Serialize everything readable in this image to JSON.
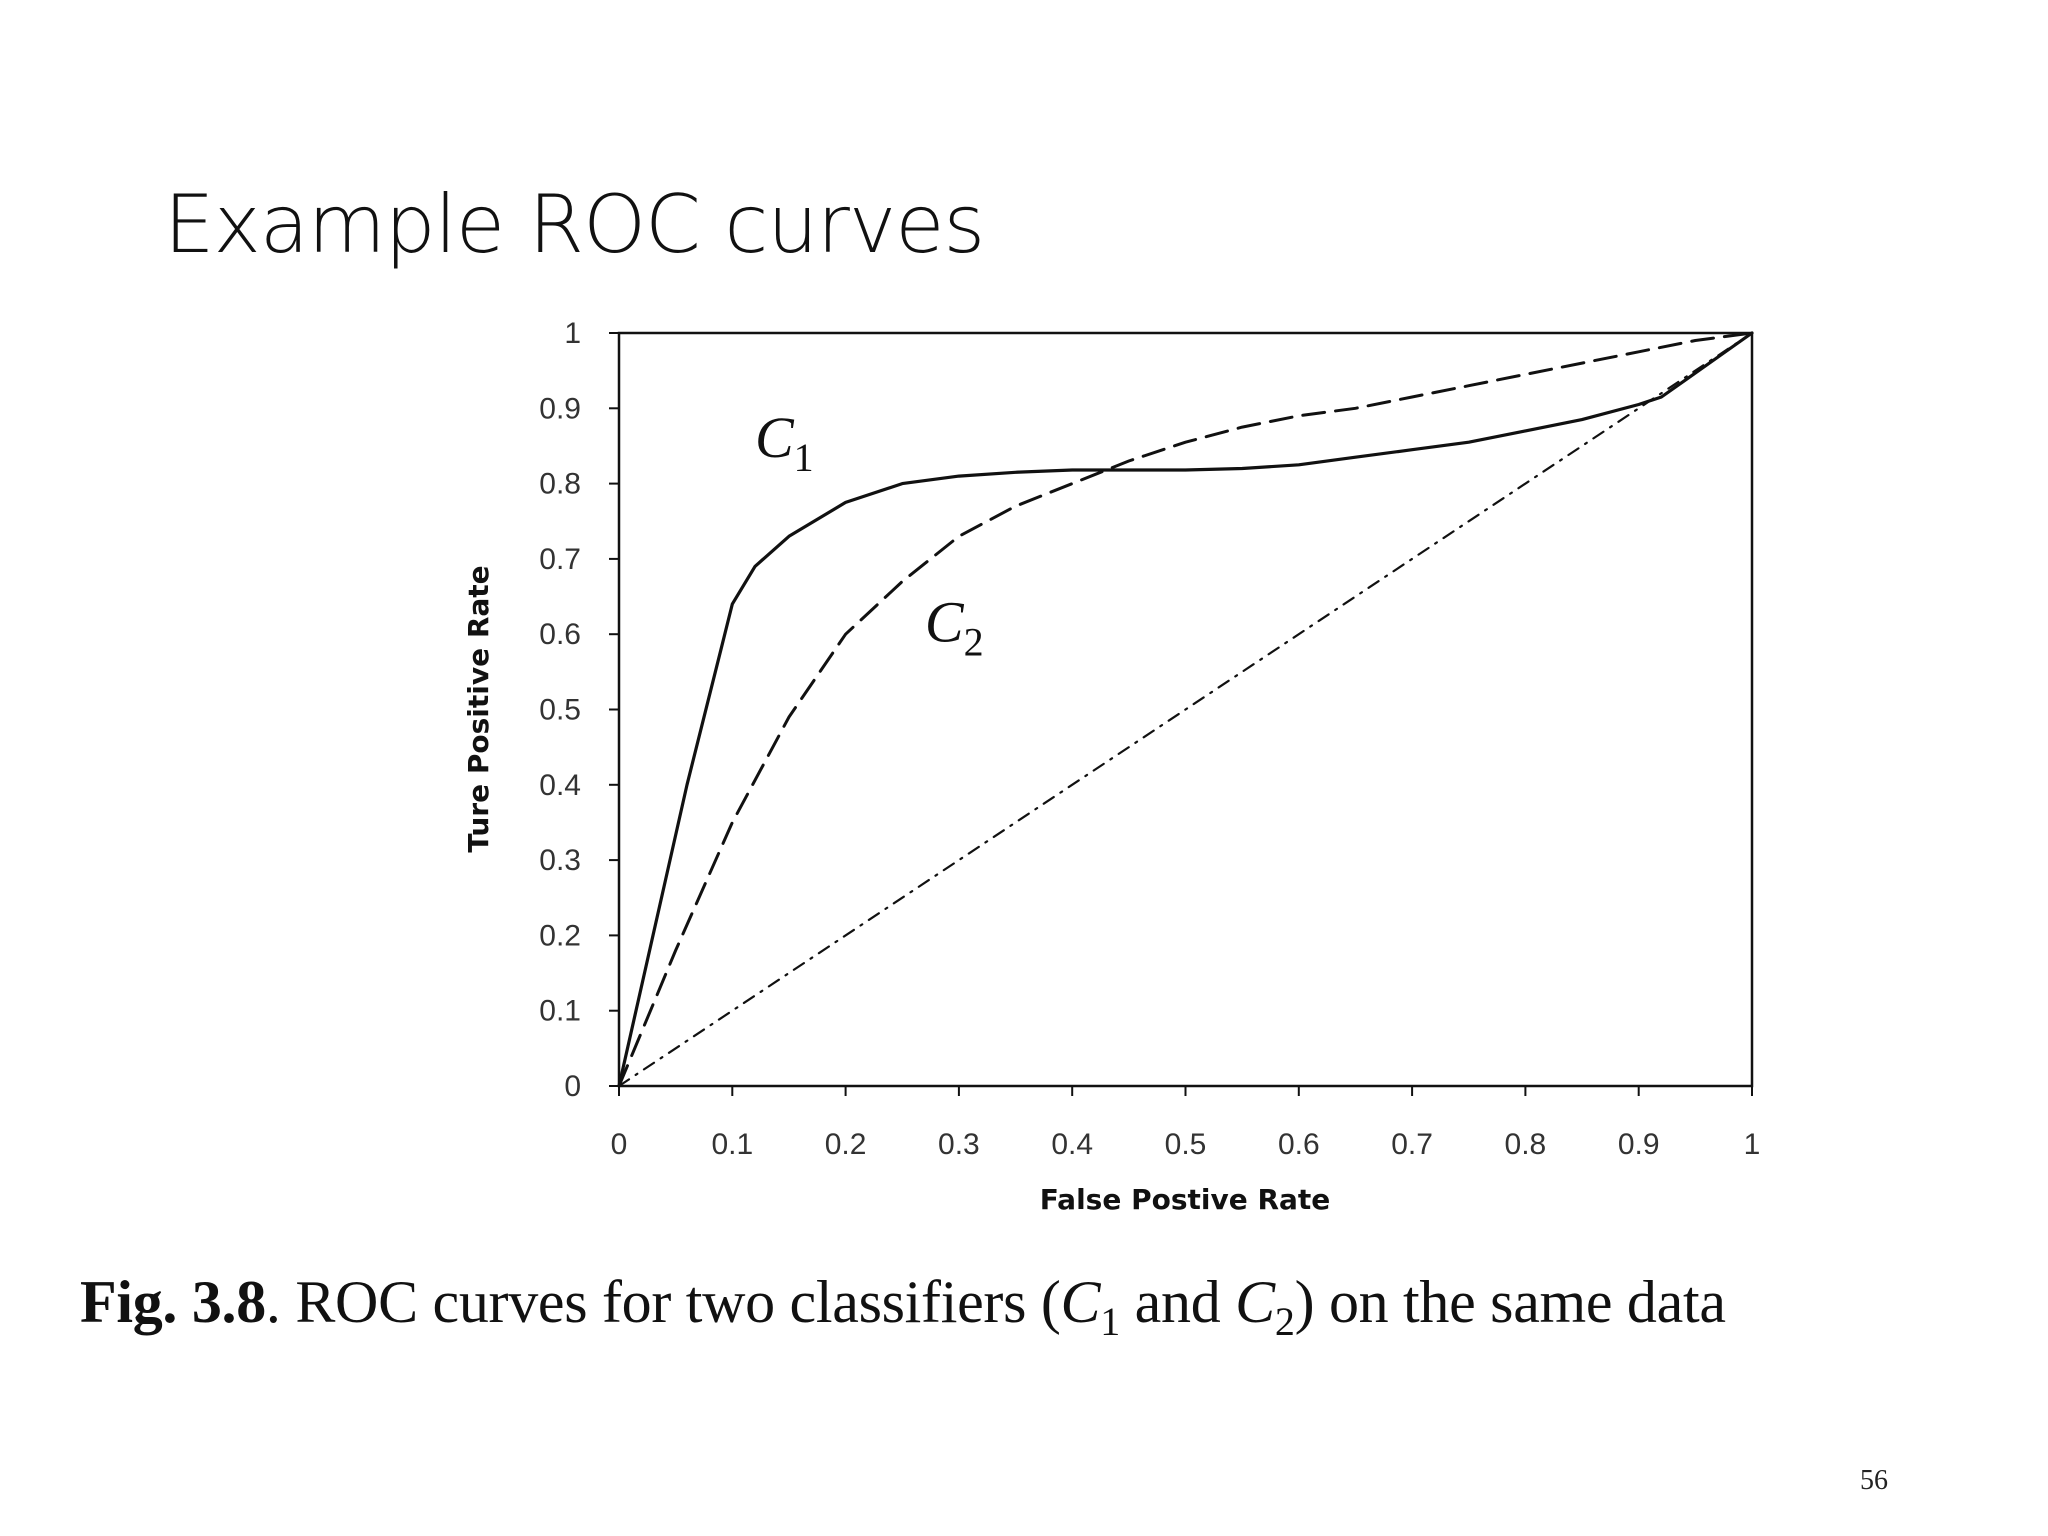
{
  "slide": {
    "title": "Example ROC curves",
    "page_number": "56"
  },
  "caption": {
    "fig_label": "Fig. 3.8",
    "text_before": ". ROC curves for two classifiers (",
    "c1_letter": "C",
    "c1_sub": "1",
    "middle": " and ",
    "c2_letter": "C",
    "c2_sub": "2",
    "text_after": ") on the same data"
  },
  "chart_data": {
    "type": "line",
    "xlabel": "False Postive Rate",
    "ylabel": "Ture Positive Rate",
    "xlim": [
      0,
      1
    ],
    "ylim": [
      0,
      1
    ],
    "x_ticks": [
      "0",
      "0.1",
      "0.2",
      "0.3",
      "0.4",
      "0.5",
      "0.6",
      "0.7",
      "0.8",
      "0.9",
      "1"
    ],
    "y_ticks": [
      "0",
      "0.1",
      "0.2",
      "0.3",
      "0.4",
      "0.5",
      "0.6",
      "0.7",
      "0.8",
      "0.9",
      "1"
    ],
    "grid": false,
    "series": [
      {
        "name": "C1",
        "style": "solid",
        "x": [
          0,
          0.03,
          0.06,
          0.09,
          0.1,
          0.12,
          0.15,
          0.2,
          0.25,
          0.3,
          0.35,
          0.4,
          0.45,
          0.5,
          0.55,
          0.6,
          0.65,
          0.7,
          0.75,
          0.8,
          0.85,
          0.9,
          0.92,
          1.0
        ],
        "y": [
          0,
          0.2,
          0.4,
          0.58,
          0.64,
          0.69,
          0.73,
          0.775,
          0.8,
          0.81,
          0.815,
          0.818,
          0.818,
          0.818,
          0.82,
          0.825,
          0.835,
          0.845,
          0.855,
          0.87,
          0.885,
          0.905,
          0.915,
          1.0
        ]
      },
      {
        "name": "C2",
        "style": "dashed",
        "x": [
          0,
          0.05,
          0.1,
          0.15,
          0.2,
          0.25,
          0.3,
          0.35,
          0.4,
          0.45,
          0.5,
          0.55,
          0.6,
          0.65,
          0.7,
          0.75,
          0.8,
          0.85,
          0.9,
          0.95,
          1.0
        ],
        "y": [
          0,
          0.18,
          0.35,
          0.49,
          0.6,
          0.67,
          0.73,
          0.77,
          0.8,
          0.83,
          0.855,
          0.875,
          0.89,
          0.9,
          0.915,
          0.93,
          0.945,
          0.96,
          0.975,
          0.99,
          1.0
        ]
      },
      {
        "name": "",
        "style": "dash-dot",
        "x": [
          0,
          1
        ],
        "y": [
          0,
          1
        ]
      }
    ],
    "annotations": [
      {
        "letter": "C",
        "sub": "1",
        "x": 0.12,
        "y": 0.835
      },
      {
        "letter": "C",
        "sub": "2",
        "x": 0.27,
        "y": 0.59
      }
    ]
  }
}
